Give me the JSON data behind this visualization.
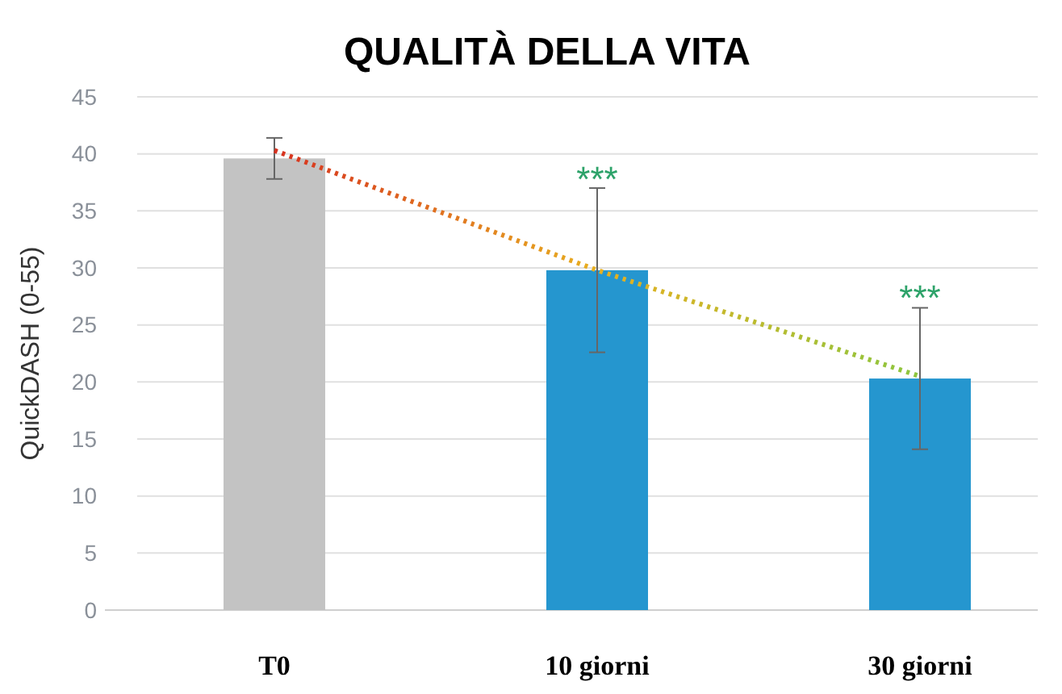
{
  "chart_data": {
    "type": "bar",
    "title": "QUALITÀ DELLA VITA",
    "ylabel": "QuickDASH (0-55)",
    "categories": [
      "T0",
      "10 giorni",
      "30 giorni"
    ],
    "series": [
      {
        "colors": [
          "#c3c3c3",
          "#2596cf",
          "#2596cf"
        ],
        "values": [
          39.6,
          29.8,
          20.3
        ],
        "errors": [
          1.8,
          7.2,
          6.2
        ]
      },
      {
        "type": "line",
        "x": [
          "T0",
          "10 giorni",
          "30 giorni"
        ],
        "colors": [
          "#d7301f",
          "#e8b020",
          "#8cc63f"
        ],
        "values": [
          40.3,
          29.8,
          20.5
        ],
        "line_style": "dotted",
        "marker": "none"
      }
    ],
    "annotations": [
      {
        "text": "***",
        "x": "10 giorni",
        "y": 36.9
      },
      {
        "text": "***",
        "x": "30 giorni",
        "y": 26.5
      }
    ],
    "ylim": [
      0,
      45
    ],
    "yticks": [
      0,
      5,
      10,
      15,
      20,
      25,
      30,
      35,
      40,
      45
    ],
    "grid": "y"
  }
}
